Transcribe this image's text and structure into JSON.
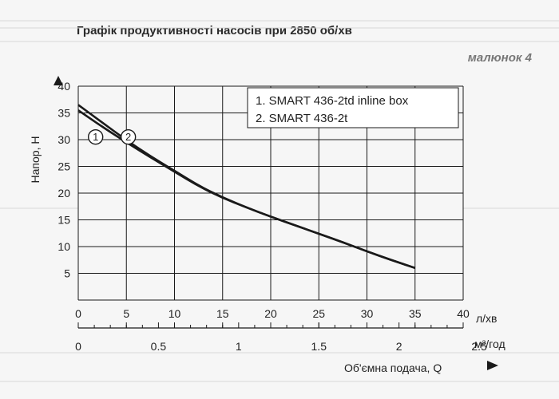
{
  "title": "Графік продуктивності насосів при 2850 об/хв",
  "figure_label": "малюнок 4",
  "chart_data": {
    "type": "line",
    "ylabel": "Напор, Н",
    "xlabel": "Об'ємна подача, Q",
    "x_unit_primary": "л/хв",
    "x_unit_secondary": "м³/год",
    "xlim": [
      0,
      40
    ],
    "ylim": [
      0,
      40
    ],
    "x_ticks": [
      "0",
      "5",
      "10",
      "15",
      "20",
      "25",
      "30",
      "35",
      "40"
    ],
    "x_secondary_ticks": [
      "0",
      "0.5",
      "1",
      "1.5",
      "2",
      "2.5"
    ],
    "x_secondary_values": [
      0,
      0.5,
      1,
      1.5,
      2,
      2.5
    ],
    "y_ticks": [
      "5",
      "10",
      "15",
      "20",
      "25",
      "30",
      "35",
      "40"
    ],
    "grid": true,
    "legend_position": "top-right",
    "legend": [
      "1. SMART 436-2td inline box",
      "2. SMART 436-2t"
    ],
    "series": [
      {
        "name": "1. SMART 436-2td inline box",
        "marker_label": "1",
        "x": [
          0,
          2.5,
          5,
          7.5,
          10,
          12.5,
          15,
          17.5,
          20,
          22.5,
          25,
          27.5,
          30,
          32.5,
          35
        ],
        "y": [
          36.5,
          33.2,
          29.9,
          26.9,
          24.2,
          21.4,
          19.2,
          17.3,
          15.6,
          14,
          12.4,
          10.8,
          9.1,
          7.5,
          6
        ]
      },
      {
        "name": "2. SMART 436-2t",
        "marker_label": "2",
        "x": [
          0,
          2.5,
          5,
          7.5,
          10,
          12.5,
          15,
          17.5,
          20,
          22.5,
          25,
          27.5,
          30,
          32.5,
          35
        ],
        "y": [
          35.5,
          32.4,
          29.5,
          26.7,
          24,
          21.3,
          19.1,
          17.3,
          15.6,
          14,
          12.4,
          10.8,
          9.1,
          7.5,
          6
        ]
      }
    ],
    "colors": {
      "line": "#1a1a1a",
      "grid": "#1a1a1a"
    }
  }
}
